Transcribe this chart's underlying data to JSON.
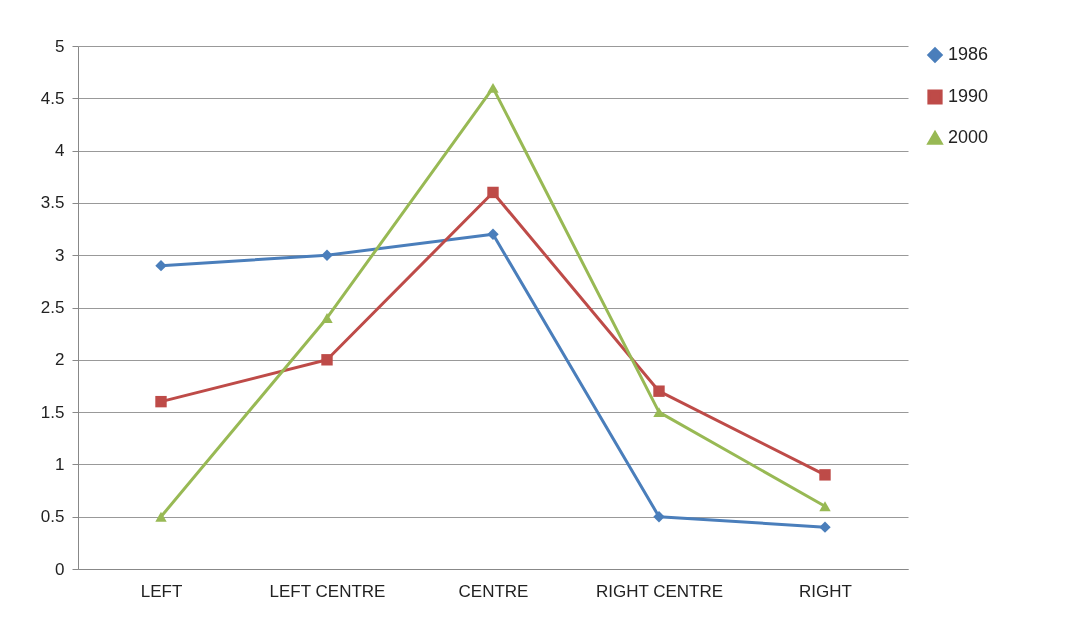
{
  "chart_data": {
    "type": "line",
    "categories": [
      "LEFT",
      "LEFT CENTRE",
      "CENTRE",
      "RIGHT CENTRE",
      "RIGHT"
    ],
    "series": [
      {
        "name": "1986",
        "color": "#4a7ebb",
        "marker": "diamond",
        "values": [
          2.9,
          3.0,
          3.2,
          0.5,
          0.4
        ]
      },
      {
        "name": "1990",
        "color": "#be4b48",
        "marker": "square",
        "values": [
          1.6,
          2.0,
          3.6,
          1.7,
          0.9
        ]
      },
      {
        "name": "2000",
        "color": "#98b954",
        "marker": "triangle",
        "values": [
          0.5,
          2.4,
          4.6,
          1.5,
          0.6
        ]
      }
    ],
    "ylim": [
      0,
      5
    ],
    "yticks": [
      0,
      0.5,
      1,
      1.5,
      2,
      2.5,
      3,
      3.5,
      4,
      4.5,
      5
    ],
    "grid": "y",
    "legend": "right",
    "line_style": "solid"
  }
}
